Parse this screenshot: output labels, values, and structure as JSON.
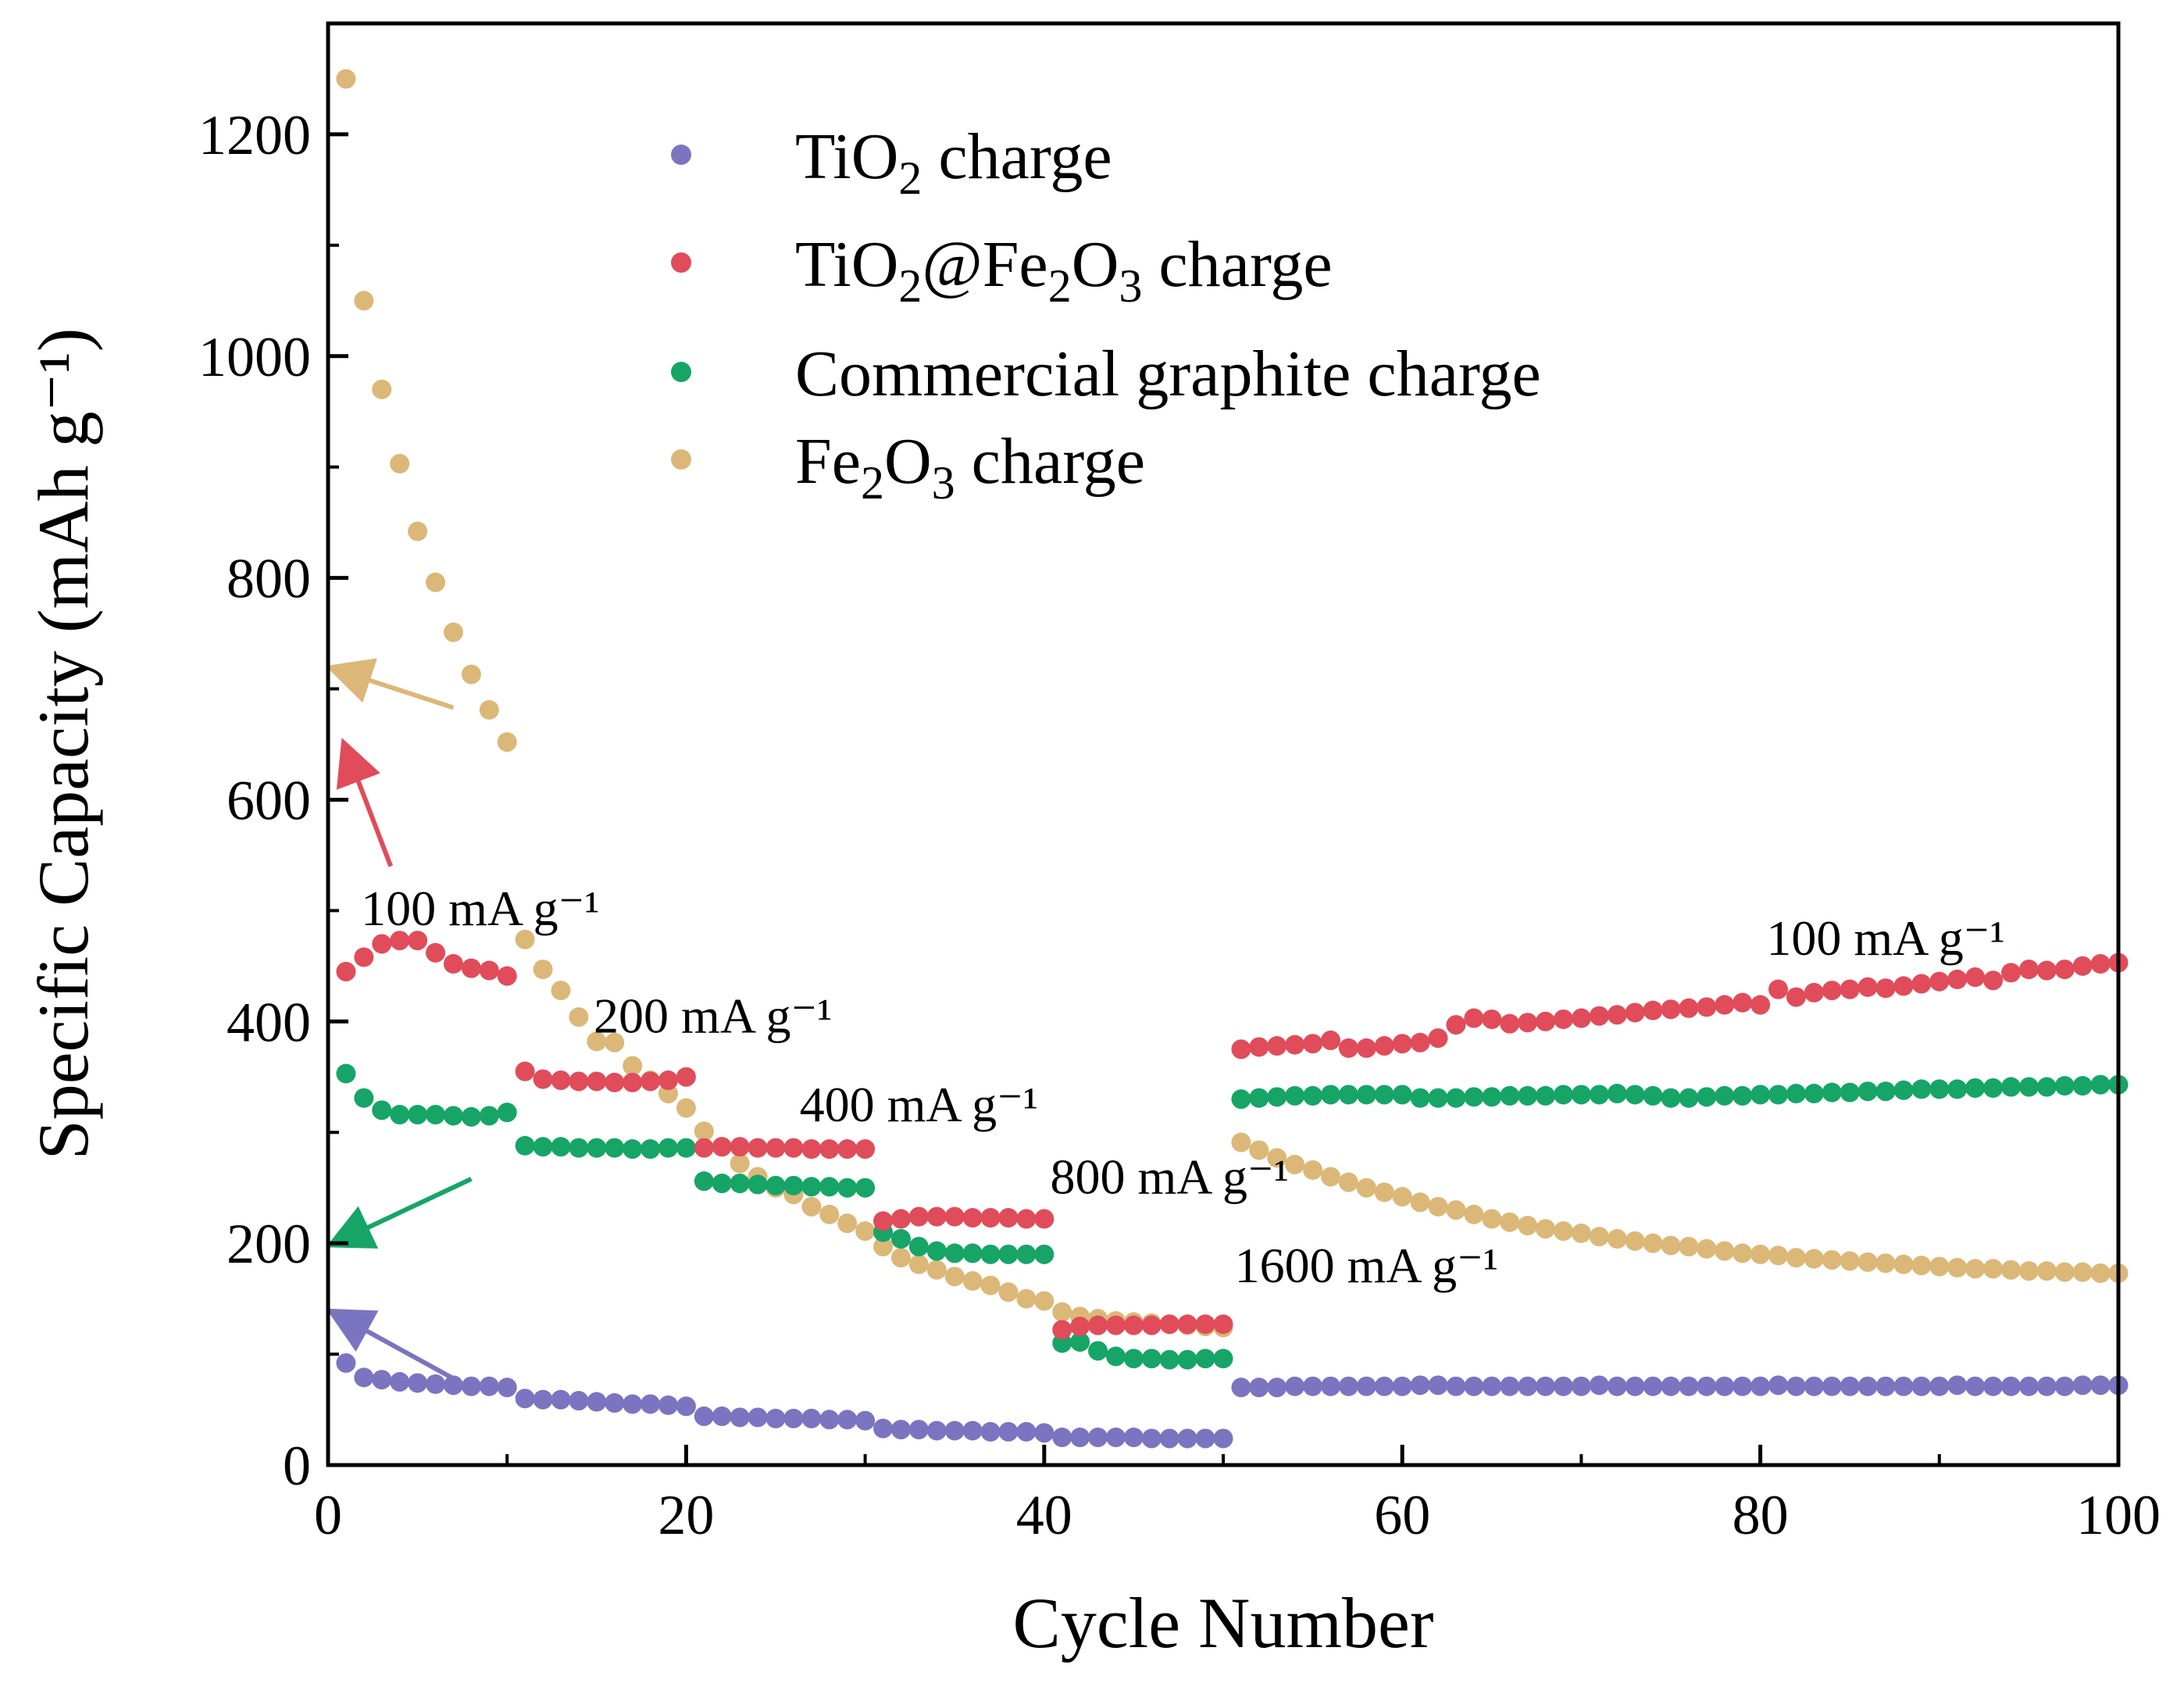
{
  "chart_data": {
    "type": "scatter",
    "title": "",
    "xlabel": "Cycle Number",
    "ylabel": "Specific Capacity (mAh g⁻¹)",
    "xlim": [
      0,
      100
    ],
    "ylim": [
      0,
      1300
    ],
    "x_ticks": [
      0,
      20,
      40,
      60,
      80,
      100
    ],
    "y_ticks": [
      0,
      200,
      400,
      600,
      800,
      1000,
      1200
    ],
    "legend_position": "top-center",
    "grid": false,
    "series": [
      {
        "name": "TiO2 charge",
        "label_main": "TiO",
        "label_sub": "2",
        "label_rest": " charge",
        "color": "#7b74c0",
        "x": [
          1,
          2,
          3,
          4,
          5,
          6,
          7,
          8,
          9,
          10,
          11,
          12,
          13,
          14,
          15,
          16,
          17,
          18,
          19,
          20,
          21,
          22,
          23,
          24,
          25,
          26,
          27,
          28,
          29,
          30,
          31,
          32,
          33,
          34,
          35,
          36,
          37,
          38,
          39,
          40,
          41,
          42,
          43,
          44,
          45,
          46,
          47,
          48,
          49,
          50,
          51,
          52,
          53,
          54,
          55,
          56,
          57,
          58,
          59,
          60,
          61,
          62,
          63,
          64,
          65,
          66,
          67,
          68,
          69,
          70,
          71,
          72,
          73,
          74,
          75,
          76,
          77,
          78,
          79,
          80,
          81,
          82,
          83,
          84,
          85,
          86,
          87,
          88,
          89,
          90,
          91,
          92,
          93,
          94,
          95,
          96,
          97,
          98,
          99,
          100
        ],
        "values": [
          92,
          79,
          77,
          75,
          74,
          73,
          72,
          71,
          71,
          70,
          60,
          59,
          59,
          58,
          57,
          56,
          55,
          55,
          54,
          53,
          44,
          44,
          43,
          43,
          42,
          42,
          42,
          41,
          41,
          40,
          33,
          32,
          32,
          31,
          31,
          31,
          30,
          30,
          30,
          29,
          25,
          25,
          25,
          25,
          25,
          24,
          24,
          24,
          24,
          24,
          70,
          70,
          70,
          71,
          71,
          71,
          71,
          71,
          71,
          71,
          72,
          72,
          71,
          71,
          71,
          71,
          71,
          71,
          71,
          71,
          72,
          71,
          71,
          71,
          71,
          71,
          71,
          71,
          71,
          71,
          72,
          71,
          71,
          71,
          71,
          71,
          71,
          71,
          71,
          71,
          72,
          71,
          71,
          71,
          71,
          71,
          71,
          72,
          72,
          72
        ]
      },
      {
        "name": "TiO2@Fe2O3 charge",
        "label_main": "TiO",
        "label_sub": "2",
        "label_mid": "@Fe",
        "label_sub2": "2",
        "label_mid2": "O",
        "label_sub3": "3",
        "label_rest": " charge",
        "color": "#e04c5a",
        "x": [
          1,
          2,
          3,
          4,
          5,
          6,
          7,
          8,
          9,
          10,
          11,
          12,
          13,
          14,
          15,
          16,
          17,
          18,
          19,
          20,
          21,
          22,
          23,
          24,
          25,
          26,
          27,
          28,
          29,
          30,
          31,
          32,
          33,
          34,
          35,
          36,
          37,
          38,
          39,
          40,
          41,
          42,
          43,
          44,
          45,
          46,
          47,
          48,
          49,
          50,
          51,
          52,
          53,
          54,
          55,
          56,
          57,
          58,
          59,
          60,
          61,
          62,
          63,
          64,
          65,
          66,
          67,
          68,
          69,
          70,
          71,
          72,
          73,
          74,
          75,
          76,
          77,
          78,
          79,
          80,
          81,
          82,
          83,
          84,
          85,
          86,
          87,
          88,
          89,
          90,
          91,
          92,
          93,
          94,
          95,
          96,
          97,
          98,
          99,
          100
        ],
        "values": [
          445,
          458,
          470,
          473,
          473,
          462,
          452,
          448,
          446,
          441,
          355,
          348,
          347,
          346,
          346,
          345,
          345,
          346,
          347,
          350,
          286,
          287,
          287,
          286,
          286,
          286,
          285,
          285,
          285,
          285,
          220,
          222,
          224,
          224,
          224,
          223,
          223,
          223,
          222,
          222,
          122,
          125,
          126,
          126,
          126,
          126,
          127,
          127,
          127,
          127,
          375,
          377,
          378,
          379,
          380,
          383,
          376,
          376,
          378,
          380,
          381,
          385,
          397,
          403,
          402,
          398,
          399,
          400,
          402,
          403,
          405,
          406,
          408,
          410,
          411,
          412,
          413,
          415,
          417,
          415,
          429,
          422,
          426,
          428,
          429,
          431,
          430,
          432,
          434,
          436,
          438,
          440,
          437,
          444,
          447,
          446,
          447,
          450,
          452,
          453
        ]
      },
      {
        "name": "Commercial graphite charge",
        "label_main": "Commercial graphite charge",
        "color": "#16a567",
        "x": [
          1,
          2,
          3,
          4,
          5,
          6,
          7,
          8,
          9,
          10,
          11,
          12,
          13,
          14,
          15,
          16,
          17,
          18,
          19,
          20,
          21,
          22,
          23,
          24,
          25,
          26,
          27,
          28,
          29,
          30,
          31,
          32,
          33,
          34,
          35,
          36,
          37,
          38,
          39,
          40,
          41,
          42,
          43,
          44,
          45,
          46,
          47,
          48,
          49,
          50,
          51,
          52,
          53,
          54,
          55,
          56,
          57,
          58,
          59,
          60,
          61,
          62,
          63,
          64,
          65,
          66,
          67,
          68,
          69,
          70,
          71,
          72,
          73,
          74,
          75,
          76,
          77,
          78,
          79,
          80,
          81,
          82,
          83,
          84,
          85,
          86,
          87,
          88,
          89,
          90,
          91,
          92,
          93,
          94,
          95,
          96,
          97,
          98,
          99,
          100
        ],
        "values": [
          353,
          331,
          320,
          316,
          316,
          316,
          315,
          314,
          315,
          318,
          288,
          287,
          287,
          286,
          286,
          286,
          285,
          285,
          286,
          286,
          256,
          254,
          254,
          253,
          252,
          252,
          251,
          251,
          250,
          250,
          210,
          204,
          197,
          193,
          191,
          191,
          190,
          190,
          190,
          190,
          110,
          111,
          103,
          98,
          96,
          96,
          95,
          95,
          96,
          96,
          330,
          331,
          332,
          333,
          333,
          334,
          334,
          334,
          334,
          334,
          331,
          331,
          331,
          332,
          332,
          333,
          333,
          333,
          334,
          334,
          334,
          335,
          334,
          333,
          331,
          331,
          332,
          333,
          333,
          334,
          334,
          335,
          335,
          336,
          336,
          337,
          337,
          338,
          339,
          339,
          339,
          340,
          340,
          341,
          341,
          341,
          342,
          342,
          343,
          343
        ]
      },
      {
        "name": "Fe2O3 charge",
        "label_main": "Fe",
        "label_sub": "2",
        "label_mid": "O",
        "label_sub2": "3",
        "label_rest": " charge",
        "color": "#dbb878",
        "x": [
          1,
          2,
          3,
          4,
          5,
          6,
          7,
          8,
          9,
          10,
          11,
          12,
          13,
          14,
          15,
          16,
          17,
          18,
          19,
          20,
          21,
          22,
          23,
          24,
          25,
          26,
          27,
          28,
          29,
          30,
          31,
          32,
          33,
          34,
          35,
          36,
          37,
          38,
          39,
          40,
          41,
          42,
          43,
          44,
          45,
          46,
          47,
          48,
          49,
          50,
          51,
          52,
          53,
          54,
          55,
          56,
          57,
          58,
          59,
          60,
          61,
          62,
          63,
          64,
          65,
          66,
          67,
          68,
          69,
          70,
          71,
          72,
          73,
          74,
          75,
          76,
          77,
          78,
          79,
          80,
          81,
          82,
          83,
          84,
          85,
          86,
          87,
          88,
          89,
          90,
          91,
          92,
          93,
          94,
          95,
          96,
          97,
          98,
          99,
          100
        ],
        "values": [
          1250,
          1050,
          970,
          903,
          842,
          796,
          751,
          713,
          681,
          652,
          474,
          447,
          428,
          404,
          382,
          381,
          360,
          347,
          335,
          322,
          301,
          287,
          272,
          260,
          250,
          244,
          233,
          226,
          218,
          211,
          197,
          187,
          181,
          176,
          170,
          166,
          162,
          156,
          150,
          148,
          138,
          134,
          132,
          130,
          129,
          128,
          127,
          126,
          125,
          124,
          291,
          284,
          277,
          271,
          266,
          260,
          255,
          250,
          246,
          242,
          237,
          233,
          230,
          226,
          222,
          219,
          216,
          213,
          211,
          209,
          206,
          204,
          202,
          200,
          198,
          197,
          195,
          193,
          191,
          190,
          189,
          187,
          186,
          185,
          184,
          183,
          182,
          181,
          180,
          179,
          178,
          177,
          177,
          176,
          175,
          175,
          174,
          174,
          173,
          173
        ]
      }
    ],
    "rate_labels": [
      {
        "text": "100 mA g⁻¹",
        "x": 8.5,
        "y": 487
      },
      {
        "text": "200 mA g⁻¹",
        "x": 21.5,
        "y": 390
      },
      {
        "text": "400 mA g⁻¹",
        "x": 33,
        "y": 310
      },
      {
        "text": "800 mA g⁻¹",
        "x": 47,
        "y": 245
      },
      {
        "text": "1600 mA g⁻¹",
        "x": 58,
        "y": 165
      },
      {
        "text": "100 mA g⁻¹",
        "x": 87,
        "y": 460
      }
    ],
    "arrows": [
      {
        "series": "Fe2O3 charge",
        "from": [
          7,
          683
        ],
        "to": [
          0,
          718
        ],
        "color": "#dbb878"
      },
      {
        "series": "TiO2@Fe2O3 charge",
        "from": [
          3.5,
          540
        ],
        "to": [
          0.6,
          648
        ],
        "color": "#e04c5a"
      },
      {
        "series": "Commercial graphite charge",
        "from": [
          8,
          258
        ],
        "to": [
          0,
          200
        ],
        "color": "#16a567"
      },
      {
        "series": "TiO2 charge",
        "from": [
          7,
          78
        ],
        "to": [
          0,
          137
        ],
        "color": "#7b74c0"
      }
    ]
  }
}
